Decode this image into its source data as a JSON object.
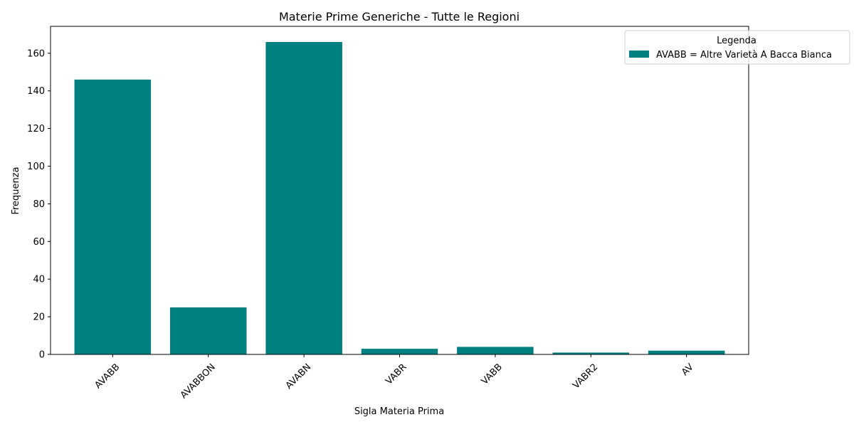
{
  "chart_data": {
    "type": "bar",
    "title": "Materie Prime Generiche - Tutte le Regioni",
    "xlabel": "Sigla Materia Prima",
    "ylabel": "Frequenza",
    "categories": [
      "AVABB",
      "AVABBON",
      "AVABN",
      "VABR",
      "VABB",
      "VABR2",
      "AV"
    ],
    "values": [
      146,
      25,
      166,
      3,
      4,
      1,
      2
    ],
    "ylim": [
      0,
      174.3
    ],
    "yticks": [
      0,
      20,
      40,
      60,
      80,
      100,
      120,
      140,
      160
    ],
    "bar_color": "#008080",
    "grid": false,
    "x_tick_rotation": 45,
    "legend": {
      "title": "Legenda",
      "placement": "top-right",
      "entries": [
        "AVABB = Altre Varietà A Bacca Bianca"
      ]
    }
  }
}
